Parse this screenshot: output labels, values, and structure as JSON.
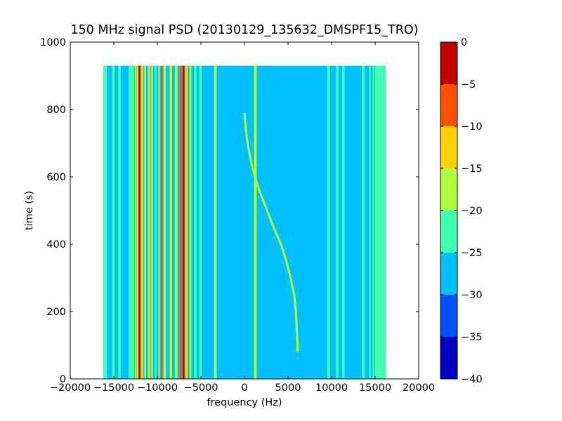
{
  "chart_data": {
    "type": "heatmap",
    "title": "150 MHz signal PSD (20130129_135632_DMSPF15_TRO)",
    "xlabel": "frequency (Hz)",
    "ylabel": "time (s)",
    "xlim": [
      -20000,
      20000
    ],
    "ylim": [
      0,
      1000
    ],
    "x_ticks": [
      "−20000",
      "−15000",
      "−10000",
      "−5000",
      "0",
      "5000",
      "10000",
      "15000",
      "20000"
    ],
    "x_tick_values": [
      -20000,
      -15000,
      -10000,
      -5000,
      0,
      5000,
      10000,
      15000,
      20000
    ],
    "y_ticks": [
      "0",
      "200",
      "400",
      "600",
      "800",
      "1000"
    ],
    "y_tick_values": [
      0,
      200,
      400,
      600,
      800,
      1000
    ],
    "data_extent": {
      "x": [
        -16200,
        16200
      ],
      "t": [
        0,
        930
      ]
    },
    "background_level": -27.5,
    "colorbar": {
      "levels": [
        -40,
        -35,
        -30,
        -25,
        -20,
        -15,
        -10,
        -5,
        0
      ],
      "tick_labels": [
        "0",
        "−5",
        "−10",
        "−15",
        "−20",
        "−25",
        "−30",
        "−35",
        "−40"
      ],
      "colors": [
        "#0000c0",
        "#0050ff",
        "#00c0ff",
        "#40ffb0",
        "#b0ff40",
        "#ffd000",
        "#ff5000",
        "#c00000"
      ]
    },
    "vertical_bands": [
      {
        "x0": -16200,
        "x1": -15800,
        "level": -22.5
      },
      {
        "x0": -15200,
        "x1": -14900,
        "level": -22.5
      },
      {
        "x0": -14500,
        "x1": -14200,
        "level": -22.5
      },
      {
        "x0": -13300,
        "x1": -12700,
        "level": -22.5
      },
      {
        "x0": -12600,
        "x1": -12450,
        "level": -17.5
      },
      {
        "x0": -12400,
        "x1": -12200,
        "level": -12.5
      },
      {
        "x0": -12150,
        "x1": -11950,
        "level": -2.5
      },
      {
        "x0": -11900,
        "x1": -11600,
        "level": -12.5
      },
      {
        "x0": -11500,
        "x1": -11300,
        "level": -17.5
      },
      {
        "x0": -11100,
        "x1": -10800,
        "level": -12.5
      },
      {
        "x0": -10700,
        "x1": -10500,
        "level": -17.5
      },
      {
        "x0": -10300,
        "x1": -10100,
        "level": -22.5
      },
      {
        "x0": -9900,
        "x1": -9700,
        "level": -12.5
      },
      {
        "x0": -9600,
        "x1": -9450,
        "level": -7.5
      },
      {
        "x0": -9300,
        "x1": -9000,
        "level": -17.5
      },
      {
        "x0": -8600,
        "x1": -8300,
        "level": -17.5
      },
      {
        "x0": -8000,
        "x1": -7700,
        "level": -17.5
      },
      {
        "x0": -7400,
        "x1": -7200,
        "level": -7.5
      },
      {
        "x0": -7100,
        "x1": -6900,
        "level": -2.5
      },
      {
        "x0": -6800,
        "x1": -6500,
        "level": -12.5
      },
      {
        "x0": -6300,
        "x1": -6100,
        "level": -17.5
      },
      {
        "x0": -5800,
        "x1": -5500,
        "level": -22.5
      },
      {
        "x0": -5200,
        "x1": -4900,
        "level": -22.5
      },
      {
        "x0": -3500,
        "x1": -3200,
        "level": -17.5
      },
      {
        "x0": 1100,
        "x1": 1400,
        "level": -17.5
      },
      {
        "x0": 9500,
        "x1": 9800,
        "level": -22.5
      },
      {
        "x0": 10500,
        "x1": 10800,
        "level": -22.5
      },
      {
        "x0": 11200,
        "x1": 11500,
        "level": -22.5
      },
      {
        "x0": 13500,
        "x1": 13800,
        "level": -22.5
      },
      {
        "x0": 14300,
        "x1": 14500,
        "level": -22.5
      },
      {
        "x0": 14700,
        "x1": 14900,
        "level": -22.5
      },
      {
        "x0": 15000,
        "x1": 16200,
        "level": -22.5
      }
    ],
    "doppler_trace": {
      "level": -17.5,
      "points": [
        [
          0,
          790
        ],
        [
          100,
          760
        ],
        [
          250,
          720
        ],
        [
          500,
          680
        ],
        [
          800,
          640
        ],
        [
          1200,
          600
        ],
        [
          1700,
          560
        ],
        [
          2300,
          520
        ],
        [
          2900,
          480
        ],
        [
          3500,
          440
        ],
        [
          4200,
          400
        ],
        [
          4800,
          350
        ],
        [
          5300,
          300
        ],
        [
          5700,
          250
        ],
        [
          5900,
          200
        ],
        [
          6000,
          150
        ],
        [
          6100,
          100
        ],
        [
          6100,
          80
        ]
      ]
    }
  }
}
